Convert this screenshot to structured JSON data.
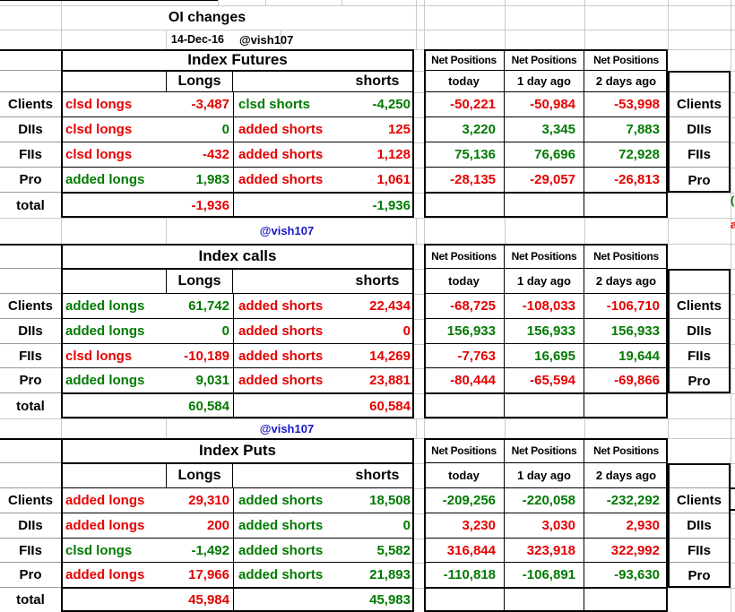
{
  "header": {
    "title": "OI changes",
    "date": "14-Dec-16",
    "handle": "@vish107"
  },
  "columns": {
    "longs": "Longs",
    "shorts": "shorts"
  },
  "net": {
    "header": "Net Positions",
    "cols": [
      "today",
      "1 day ago",
      "2 days ago"
    ]
  },
  "colors": {
    "r": "#e60000",
    "g": "#007a00",
    "blue": "#1616c8",
    "black": "#000000"
  },
  "tables": [
    {
      "handle_above": null,
      "title": "Index Futures",
      "rows": [
        {
          "label": "Clients",
          "long_action": {
            "t": "clsd longs",
            "c": "r"
          },
          "long_value": {
            "t": "-3,487",
            "c": "r"
          },
          "short_action": {
            "t": "clsd shorts",
            "c": "g"
          },
          "short_value": {
            "t": "-4,250",
            "c": "g"
          },
          "net": [
            {
              "t": "-50,221",
              "c": "r"
            },
            {
              "t": "-50,984",
              "c": "r"
            },
            {
              "t": "-53,998",
              "c": "r"
            }
          ]
        },
        {
          "label": "DIIs",
          "long_action": {
            "t": "clsd longs",
            "c": "r"
          },
          "long_value": {
            "t": "0",
            "c": "g"
          },
          "short_action": {
            "t": "added shorts",
            "c": "r"
          },
          "short_value": {
            "t": "125",
            "c": "r"
          },
          "net": [
            {
              "t": "3,220",
              "c": "g"
            },
            {
              "t": "3,345",
              "c": "g"
            },
            {
              "t": "7,883",
              "c": "g"
            }
          ]
        },
        {
          "label": "FIIs",
          "long_action": {
            "t": "clsd longs",
            "c": "r"
          },
          "long_value": {
            "t": "-432",
            "c": "r"
          },
          "short_action": {
            "t": "added shorts",
            "c": "r"
          },
          "short_value": {
            "t": "1,128",
            "c": "r"
          },
          "net": [
            {
              "t": "75,136",
              "c": "g"
            },
            {
              "t": "76,696",
              "c": "g"
            },
            {
              "t": "72,928",
              "c": "g"
            }
          ]
        },
        {
          "label": "Pro",
          "long_action": {
            "t": "added longs",
            "c": "g"
          },
          "long_value": {
            "t": "1,983",
            "c": "g"
          },
          "short_action": {
            "t": "added shorts",
            "c": "r"
          },
          "short_value": {
            "t": "1,061",
            "c": "r"
          },
          "net": [
            {
              "t": "-28,135",
              "c": "r"
            },
            {
              "t": "-29,057",
              "c": "r"
            },
            {
              "t": "-26,813",
              "c": "r"
            }
          ]
        }
      ],
      "total": {
        "label": "total",
        "long": {
          "t": "-1,936",
          "c": "r"
        },
        "short": {
          "t": "-1,936",
          "c": "g"
        }
      }
    },
    {
      "handle_above": "@vish107",
      "title": "Index calls",
      "rows": [
        {
          "label": "Clients",
          "long_action": {
            "t": "added longs",
            "c": "g"
          },
          "long_value": {
            "t": "61,742",
            "c": "g"
          },
          "short_action": {
            "t": "added shorts",
            "c": "r"
          },
          "short_value": {
            "t": "22,434",
            "c": "r"
          },
          "net": [
            {
              "t": "-68,725",
              "c": "r"
            },
            {
              "t": "-108,033",
              "c": "r"
            },
            {
              "t": "-106,710",
              "c": "r"
            }
          ]
        },
        {
          "label": "DIIs",
          "long_action": {
            "t": "added longs",
            "c": "g"
          },
          "long_value": {
            "t": "0",
            "c": "g"
          },
          "short_action": {
            "t": "added shorts",
            "c": "r"
          },
          "short_value": {
            "t": "0",
            "c": "r"
          },
          "net": [
            {
              "t": "156,933",
              "c": "g"
            },
            {
              "t": "156,933",
              "c": "g"
            },
            {
              "t": "156,933",
              "c": "g"
            }
          ]
        },
        {
          "label": "FIIs",
          "long_action": {
            "t": "clsd longs",
            "c": "r"
          },
          "long_value": {
            "t": "-10,189",
            "c": "r"
          },
          "short_action": {
            "t": "added shorts",
            "c": "r"
          },
          "short_value": {
            "t": "14,269",
            "c": "r"
          },
          "net": [
            {
              "t": "-7,763",
              "c": "r"
            },
            {
              "t": "16,695",
              "c": "g"
            },
            {
              "t": "19,644",
              "c": "g"
            }
          ]
        },
        {
          "label": "Pro",
          "long_action": {
            "t": "added longs",
            "c": "g"
          },
          "long_value": {
            "t": "9,031",
            "c": "g"
          },
          "short_action": {
            "t": "added shorts",
            "c": "r"
          },
          "short_value": {
            "t": "23,881",
            "c": "r"
          },
          "net": [
            {
              "t": "-80,444",
              "c": "r"
            },
            {
              "t": "-65,594",
              "c": "r"
            },
            {
              "t": "-69,866",
              "c": "r"
            }
          ]
        }
      ],
      "total": {
        "label": "total",
        "long": {
          "t": "60,584",
          "c": "g"
        },
        "short": {
          "t": "60,584",
          "c": "r"
        }
      }
    },
    {
      "handle_above": "@vish107",
      "title": "Index Puts",
      "rows": [
        {
          "label": "Clients",
          "long_action": {
            "t": "added longs",
            "c": "r"
          },
          "long_value": {
            "t": "29,310",
            "c": "r"
          },
          "short_action": {
            "t": "added shorts",
            "c": "g"
          },
          "short_value": {
            "t": "18,508",
            "c": "g"
          },
          "net": [
            {
              "t": "-209,256",
              "c": "g"
            },
            {
              "t": "-220,058",
              "c": "g"
            },
            {
              "t": "-232,292",
              "c": "g"
            }
          ]
        },
        {
          "label": "DIIs",
          "long_action": {
            "t": "added longs",
            "c": "r"
          },
          "long_value": {
            "t": "200",
            "c": "r"
          },
          "short_action": {
            "t": "added shorts",
            "c": "g"
          },
          "short_value": {
            "t": "0",
            "c": "g"
          },
          "net": [
            {
              "t": "3,230",
              "c": "r"
            },
            {
              "t": "3,030",
              "c": "r"
            },
            {
              "t": "2,930",
              "c": "r"
            }
          ]
        },
        {
          "label": "FIIs",
          "long_action": {
            "t": "clsd longs",
            "c": "g"
          },
          "long_value": {
            "t": "-1,492",
            "c": "g"
          },
          "short_action": {
            "t": "added shorts",
            "c": "g"
          },
          "short_value": {
            "t": "5,582",
            "c": "g"
          },
          "net": [
            {
              "t": "316,844",
              "c": "r"
            },
            {
              "t": "323,918",
              "c": "r"
            },
            {
              "t": "322,992",
              "c": "r"
            }
          ]
        },
        {
          "label": "Pro",
          "long_action": {
            "t": "added longs",
            "c": "r"
          },
          "long_value": {
            "t": "17,966",
            "c": "r"
          },
          "short_action": {
            "t": "added shorts",
            "c": "g"
          },
          "short_value": {
            "t": "21,893",
            "c": "g"
          },
          "net": [
            {
              "t": "-110,818",
              "c": "g"
            },
            {
              "t": "-106,891",
              "c": "g"
            },
            {
              "t": "-93,630",
              "c": "g"
            }
          ]
        }
      ],
      "total": {
        "label": "total",
        "long": {
          "t": "45,984",
          "c": "r"
        },
        "short": {
          "t": "45,983",
          "c": "g"
        }
      }
    }
  ],
  "edge": {
    "green_fragment": "(",
    "red_fragment": "a"
  }
}
